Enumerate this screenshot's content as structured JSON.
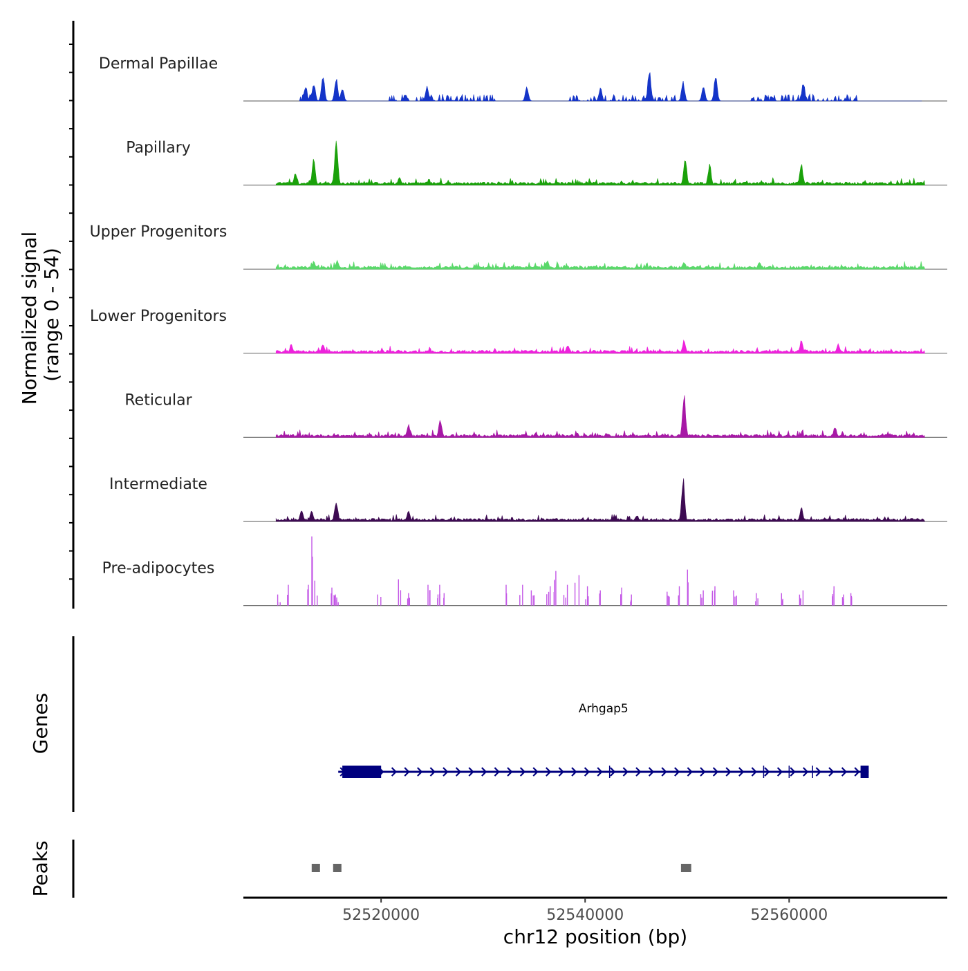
{
  "chart_data": {
    "type": "area",
    "title": "",
    "ylabel_line1": "Normalized signal",
    "ylabel_line2": "(range 0 - 54)",
    "y_range": [
      0,
      54
    ],
    "xlabel": "chr12 position (bp)",
    "x_range": [
      52506500,
      52575500
    ],
    "x_ticks": [
      52520000,
      52540000,
      52560000
    ],
    "x_tick_labels": [
      "52520000",
      "52540000",
      "52560000"
    ],
    "tracks": [
      {
        "name": "Dermal Papillae",
        "color": "#1434c8",
        "style": "sparse",
        "coverage": [
          52512000,
          52573000
        ],
        "peaks": [
          {
            "pos": 52512600,
            "h": 12
          },
          {
            "pos": 52513400,
            "h": 14
          },
          {
            "pos": 52514300,
            "h": 20
          },
          {
            "pos": 52515600,
            "h": 18
          },
          {
            "pos": 52516200,
            "h": 10
          },
          {
            "pos": 52524500,
            "h": 11
          },
          {
            "pos": 52534300,
            "h": 11
          },
          {
            "pos": 52541500,
            "h": 10
          },
          {
            "pos": 52546300,
            "h": 24
          },
          {
            "pos": 52549600,
            "h": 15
          },
          {
            "pos": 52551600,
            "h": 11
          },
          {
            "pos": 52552800,
            "h": 19
          },
          {
            "pos": 52561400,
            "h": 14
          }
        ]
      },
      {
        "name": "Papillary",
        "color": "#1aa10a",
        "style": "dense",
        "coverage": [
          52509700,
          52573300
        ],
        "peaks": [
          {
            "pos": 52511600,
            "h": 10
          },
          {
            "pos": 52513400,
            "h": 20
          },
          {
            "pos": 52515600,
            "h": 36
          },
          {
            "pos": 52521800,
            "h": 6
          },
          {
            "pos": 52549800,
            "h": 22
          },
          {
            "pos": 52552200,
            "h": 16
          },
          {
            "pos": 52561200,
            "h": 16
          }
        ]
      },
      {
        "name": "Upper Progenitors",
        "color": "#5ad86a",
        "style": "dense",
        "coverage": [
          52509700,
          52573300
        ],
        "peaks": [
          {
            "pos": 52513400,
            "h": 6
          },
          {
            "pos": 52515700,
            "h": 7
          },
          {
            "pos": 52536300,
            "h": 7
          },
          {
            "pos": 52549700,
            "h": 6
          },
          {
            "pos": 52557100,
            "h": 6
          }
        ]
      },
      {
        "name": "Lower Progenitors",
        "color": "#ee22dc",
        "style": "dense",
        "coverage": [
          52509700,
          52573300
        ],
        "peaks": [
          {
            "pos": 52511200,
            "h": 7
          },
          {
            "pos": 52514300,
            "h": 7
          },
          {
            "pos": 52538300,
            "h": 7
          },
          {
            "pos": 52549700,
            "h": 10
          },
          {
            "pos": 52561200,
            "h": 10
          },
          {
            "pos": 52564800,
            "h": 7
          }
        ]
      },
      {
        "name": "Reticular",
        "color": "#a718a6",
        "style": "dense",
        "coverage": [
          52509700,
          52573300
        ],
        "peaks": [
          {
            "pos": 52522700,
            "h": 10
          },
          {
            "pos": 52525800,
            "h": 14
          },
          {
            "pos": 52549700,
            "h": 33
          },
          {
            "pos": 52564500,
            "h": 8
          }
        ]
      },
      {
        "name": "Intermediate",
        "color": "#3d0a52",
        "style": "dense",
        "coverage": [
          52509700,
          52573300
        ],
        "peaks": [
          {
            "pos": 52512200,
            "h": 10
          },
          {
            "pos": 52513200,
            "h": 8
          },
          {
            "pos": 52515600,
            "h": 17
          },
          {
            "pos": 52522700,
            "h": 8
          },
          {
            "pos": 52549600,
            "h": 34
          },
          {
            "pos": 52561200,
            "h": 11
          }
        ]
      },
      {
        "name": "Pre-adipocytes",
        "color": "#c357e6",
        "style": "spiky",
        "coverage": [
          52509700,
          52567000
        ],
        "peaks": [
          {
            "pos": 52510000,
            "h": 8
          },
          {
            "pos": 52510800,
            "h": 15
          },
          {
            "pos": 52512700,
            "h": 15
          },
          {
            "pos": 52513300,
            "h": 50
          },
          {
            "pos": 52513700,
            "h": 18
          },
          {
            "pos": 52515300,
            "h": 13
          },
          {
            "pos": 52515700,
            "h": 8
          },
          {
            "pos": 52519800,
            "h": 8
          },
          {
            "pos": 52521800,
            "h": 19
          },
          {
            "pos": 52522800,
            "h": 9
          },
          {
            "pos": 52524600,
            "h": 15
          },
          {
            "pos": 52525700,
            "h": 15
          },
          {
            "pos": 52526300,
            "h": 9
          },
          {
            "pos": 52532100,
            "h": 15
          },
          {
            "pos": 52533800,
            "h": 15
          },
          {
            "pos": 52534900,
            "h": 11
          },
          {
            "pos": 52536400,
            "h": 14
          },
          {
            "pos": 52537000,
            "h": 25
          },
          {
            "pos": 52538100,
            "h": 15
          },
          {
            "pos": 52539200,
            "h": 22
          },
          {
            "pos": 52540200,
            "h": 14
          },
          {
            "pos": 52541500,
            "h": 11
          },
          {
            "pos": 52543500,
            "h": 13
          },
          {
            "pos": 52544600,
            "h": 8
          },
          {
            "pos": 52548100,
            "h": 10
          },
          {
            "pos": 52549100,
            "h": 14
          },
          {
            "pos": 52550100,
            "h": 26
          },
          {
            "pos": 52551400,
            "h": 11
          },
          {
            "pos": 52552600,
            "h": 14
          },
          {
            "pos": 52554700,
            "h": 11
          },
          {
            "pos": 52556800,
            "h": 9
          },
          {
            "pos": 52559200,
            "h": 9
          },
          {
            "pos": 52561200,
            "h": 11
          },
          {
            "pos": 52564400,
            "h": 14
          },
          {
            "pos": 52565300,
            "h": 8
          },
          {
            "pos": 52566100,
            "h": 9
          }
        ]
      }
    ],
    "genes_label": "Genes",
    "gene": {
      "name": "Arhgap5",
      "start": 52515800,
      "end": 52567800,
      "strand": "+",
      "exons": [
        [
          52516200,
          52520000
        ],
        [
          52567000,
          52567800
        ]
      ],
      "introns_markers": [
        52542400,
        52557500,
        52560000,
        52562300
      ],
      "color": "#00007f"
    },
    "peaks_label": "Peaks",
    "called_peaks": [
      [
        52513200,
        52514000
      ],
      [
        52515300,
        52516100
      ],
      [
        52549400,
        52550400
      ]
    ],
    "peaks_color": "#666666"
  }
}
